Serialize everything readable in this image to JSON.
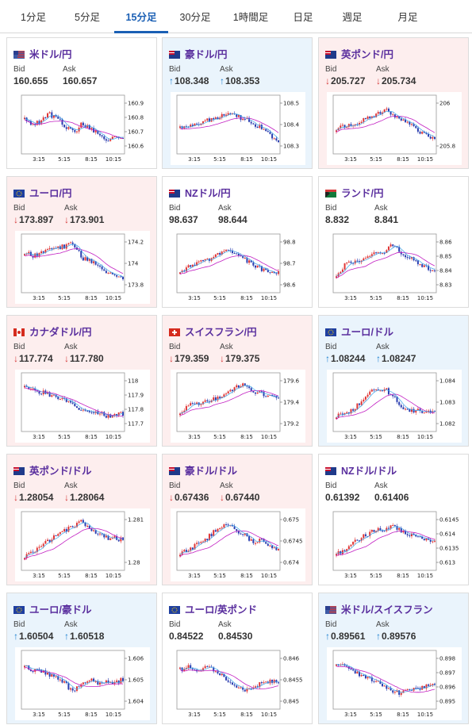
{
  "tabs": [
    {
      "label": "1分足",
      "active": false
    },
    {
      "label": "5分足",
      "active": false
    },
    {
      "label": "15分足",
      "active": true
    },
    {
      "label": "30分足",
      "active": false
    },
    {
      "label": "1時間足",
      "active": false
    },
    {
      "label": "日足",
      "active": false
    },
    {
      "label": "週足",
      "active": false
    },
    {
      "label": "月足",
      "active": false
    }
  ],
  "labels": {
    "bid": "Bid",
    "ask": "Ask"
  },
  "colors": {
    "up": "#1a7fd0",
    "down": "#d63a3a",
    "title": "#5a2f9e",
    "ma": "#c21fc2",
    "ma_short": "#3da5e8"
  },
  "x_ticks": [
    "3:15",
    "5:15",
    "8:15",
    "10:15"
  ],
  "pairs": [
    {
      "name": "米ドル/円",
      "flag": "us-jp-flag-icon",
      "bid": "160.655",
      "ask": "160.657",
      "dir": "none",
      "yticks": [
        "160.9",
        "160.8",
        "160.7",
        "160.6"
      ],
      "trend": [
        0.4,
        0.5,
        0.45,
        0.3,
        0.4,
        0.55,
        0.7,
        0.5,
        0.6,
        0.7,
        0.85,
        0.8,
        0.85
      ]
    },
    {
      "name": "豪ドル/円",
      "flag": "au-jp-flag-icon",
      "bid": "108.348",
      "ask": "108.353",
      "dir": "up",
      "yticks": [
        "108.5",
        "108.4",
        "108.3"
      ],
      "trend": [
        0.6,
        0.55,
        0.5,
        0.45,
        0.4,
        0.35,
        0.3,
        0.35,
        0.4,
        0.5,
        0.6,
        0.75,
        0.85
      ]
    },
    {
      "name": "英ポンド/円",
      "flag": "gb-jp-flag-icon",
      "bid": "205.727",
      "ask": "205.734",
      "dir": "down",
      "yticks": [
        "206",
        "205.8"
      ],
      "trend": [
        0.6,
        0.55,
        0.5,
        0.45,
        0.35,
        0.3,
        0.2,
        0.35,
        0.45,
        0.5,
        0.65,
        0.75,
        0.8
      ]
    },
    {
      "name": "ユーロ/円",
      "flag": "eu-jp-flag-icon",
      "bid": "173.897",
      "ask": "173.901",
      "dir": "down",
      "yticks": [
        "174.2",
        "174",
        "173.8"
      ],
      "trend": [
        0.3,
        0.35,
        0.3,
        0.25,
        0.2,
        0.15,
        0.1,
        0.4,
        0.45,
        0.55,
        0.7,
        0.8,
        0.85
      ]
    },
    {
      "name": "NZドル/円",
      "flag": "nz-jp-flag-icon",
      "bid": "98.637",
      "ask": "98.644",
      "dir": "none",
      "yticks": [
        "98.8",
        "98.7",
        "98.6"
      ],
      "trend": [
        0.7,
        0.6,
        0.5,
        0.45,
        0.4,
        0.3,
        0.2,
        0.35,
        0.45,
        0.55,
        0.65,
        0.75,
        0.7
      ]
    },
    {
      "name": "ランド/円",
      "flag": "za-jp-flag-icon",
      "bid": "8.832",
      "ask": "8.841",
      "dir": "none",
      "yticks": [
        "8.86",
        "8.85",
        "8.84",
        "8.83"
      ],
      "trend": [
        0.8,
        0.55,
        0.5,
        0.45,
        0.35,
        0.3,
        0.25,
        0.1,
        0.3,
        0.4,
        0.5,
        0.6,
        0.7
      ]
    },
    {
      "name": "カナダドル/円",
      "flag": "ca-jp-flag-icon",
      "bid": "117.774",
      "ask": "117.780",
      "dir": "down",
      "yticks": [
        "118",
        "117.9",
        "117.8",
        "117.7"
      ],
      "trend": [
        0.2,
        0.25,
        0.3,
        0.35,
        0.4,
        0.5,
        0.6,
        0.7,
        0.7,
        0.75,
        0.8,
        0.8,
        0.75
      ]
    },
    {
      "name": "スイスフラン/円",
      "flag": "ch-jp-flag-icon",
      "bid": "179.359",
      "ask": "179.375",
      "dir": "down",
      "yticks": [
        "179.6",
        "179.4",
        "179.2"
      ],
      "trend": [
        0.8,
        0.6,
        0.55,
        0.5,
        0.45,
        0.4,
        0.3,
        0.2,
        0.15,
        0.3,
        0.35,
        0.4,
        0.4
      ]
    },
    {
      "name": "ユーロ/ドル",
      "flag": "eu-us-flag-icon",
      "bid": "1.08244",
      "ask": "1.08247",
      "dir": "up",
      "yticks": [
        "1.084",
        "1.083",
        "1.082"
      ],
      "trend": [
        0.8,
        0.75,
        0.7,
        0.5,
        0.3,
        0.25,
        0.25,
        0.4,
        0.65,
        0.7,
        0.7,
        0.75,
        0.7
      ]
    },
    {
      "name": "英ポンド/ドル",
      "flag": "gb-us-flag-icon",
      "bid": "1.28054",
      "ask": "1.28064",
      "dir": "down",
      "yticks": [
        "1.281",
        "1.28"
      ],
      "trend": [
        0.85,
        0.75,
        0.6,
        0.5,
        0.35,
        0.3,
        0.2,
        0.1,
        0.3,
        0.35,
        0.45,
        0.45,
        0.5
      ]
    },
    {
      "name": "豪ドル/ドル",
      "flag": "au-us-flag-icon",
      "bid": "0.67436",
      "ask": "0.67440",
      "dir": "down",
      "yticks": [
        "0.675",
        "0.6745",
        "0.674"
      ],
      "trend": [
        0.8,
        0.7,
        0.6,
        0.5,
        0.35,
        0.2,
        0.15,
        0.3,
        0.4,
        0.55,
        0.5,
        0.65,
        0.7
      ]
    },
    {
      "name": "NZドル/ドル",
      "flag": "nz-us-flag-icon",
      "bid": "0.61392",
      "ask": "0.61406",
      "dir": "none",
      "yticks": [
        "0.6145",
        "0.614",
        "0.6135",
        "0.613"
      ],
      "trend": [
        0.8,
        0.7,
        0.55,
        0.45,
        0.35,
        0.3,
        0.25,
        0.2,
        0.3,
        0.4,
        0.45,
        0.5,
        0.55
      ]
    },
    {
      "name": "ユーロ/豪ドル",
      "flag": "eu-au-flag-icon",
      "bid": "1.60504",
      "ask": "1.60518",
      "dir": "up",
      "yticks": [
        "1.606",
        "1.605",
        "1.604"
      ],
      "trend": [
        0.25,
        0.3,
        0.35,
        0.4,
        0.5,
        0.6,
        0.8,
        0.55,
        0.5,
        0.6,
        0.55,
        0.6,
        0.5
      ]
    },
    {
      "name": "ユーロ/英ポンド",
      "flag": "eu-gb-flag-icon",
      "bid": "0.84522",
      "ask": "0.84530",
      "dir": "none",
      "yticks": [
        "0.846",
        "0.8455",
        "0.845"
      ],
      "trend": [
        0.3,
        0.25,
        0.3,
        0.25,
        0.3,
        0.4,
        0.6,
        0.7,
        0.75,
        0.65,
        0.6,
        0.55,
        0.55
      ]
    },
    {
      "name": "米ドル/スイスフラン",
      "flag": "us-ch-flag-icon",
      "bid": "0.89561",
      "ask": "0.89576",
      "dir": "up",
      "yticks": [
        "0.898",
        "0.897",
        "0.896",
        "0.895"
      ],
      "trend": [
        0.15,
        0.25,
        0.35,
        0.4,
        0.5,
        0.55,
        0.65,
        0.75,
        0.8,
        0.7,
        0.7,
        0.65,
        0.6
      ]
    }
  ]
}
